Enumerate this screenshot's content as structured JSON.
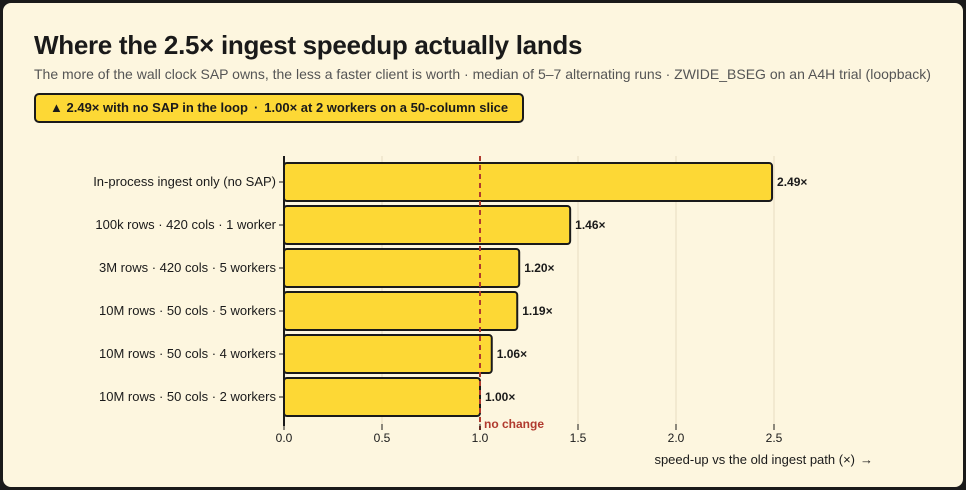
{
  "header": {
    "title": "Where the 2.5× ingest speedup actually lands",
    "subtitle": "The more of the wall clock SAP owns, the less a faster client is worth · median of 5–7 alternating runs · ZWIDE_BSEG on an A4H trial (loopback)"
  },
  "badge": {
    "arrow": "▲",
    "part1": "2.49× with no SAP in the loop",
    "separator": "·",
    "part2": "1.00× at 2 workers on a 50-column slice"
  },
  "chart_data": {
    "type": "bar",
    "orientation": "horizontal",
    "categories": [
      "In-process ingest only (no SAP)",
      "100k rows · 420 cols · 1 worker",
      "3M rows · 420 cols · 5 workers",
      "10M rows · 50 cols · 5 workers",
      "10M rows · 50 cols · 4 workers",
      "10M rows · 50 cols · 2 workers"
    ],
    "values": [
      2.49,
      1.46,
      1.2,
      1.19,
      1.06,
      1.0
    ],
    "value_labels": [
      "2.49×",
      "1.46×",
      "1.20×",
      "1.19×",
      "1.06×",
      "1.00×"
    ],
    "xlabel": "speed-up vs the old ingest path (×)",
    "xlabel_arrow": "→",
    "xlim": [
      0,
      2.6
    ],
    "xticks": [
      0,
      0.5,
      1.0,
      1.5,
      2.0,
      2.5
    ],
    "xtick_labels": [
      "0.0",
      "0.5",
      "1.0",
      "1.5",
      "2.0",
      "2.5"
    ],
    "reference_line": {
      "value": 1.0,
      "label": "no change",
      "color": "#b03a2e"
    },
    "grid": "vertical",
    "bar_color": "#fdd835",
    "outline_color": "#1a1a1a"
  }
}
